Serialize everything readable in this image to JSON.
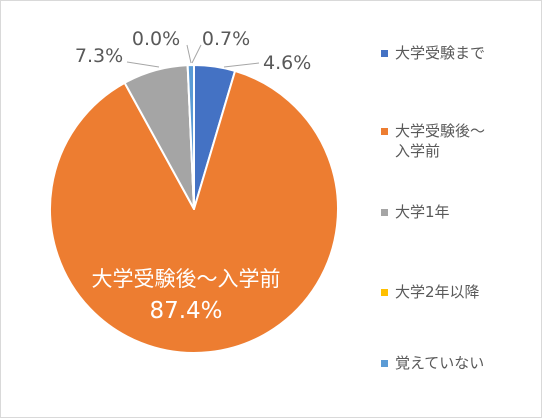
{
  "chart_data": {
    "type": "pie",
    "title": "",
    "categories": [
      "大学受験まで",
      "大学受験後～入学前",
      "大学1年",
      "大学2年以降",
      "覚えていない"
    ],
    "values": [
      4.6,
      87.4,
      7.3,
      0.0,
      0.7
    ],
    "data_labels": [
      "4.6%",
      "87.4%",
      "7.3%",
      "0.0%",
      "0.7%"
    ],
    "inside_label_category": "大学受験後～入学前",
    "colors": [
      "#4472c4",
      "#ed7d31",
      "#a5a5a5",
      "#ffc000",
      "#5b9bd5"
    ],
    "legend_labels": [
      "大学受験まで",
      "大学受験後～\n入学前",
      "大学1年",
      "大学2年以降",
      "覚えていない"
    ],
    "legend_position": "right",
    "start_angle_deg": 0,
    "direction": "clockwise"
  }
}
